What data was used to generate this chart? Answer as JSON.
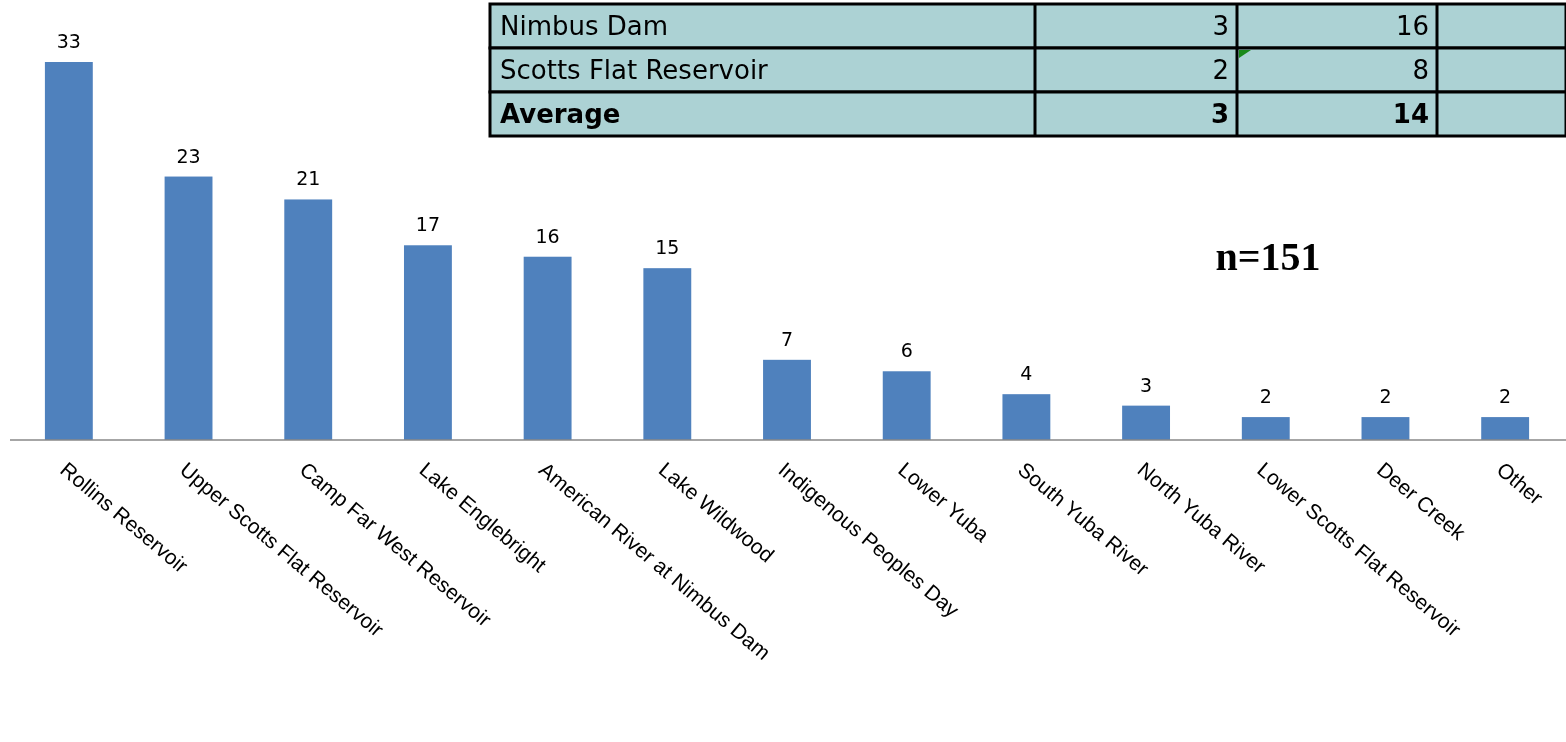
{
  "chart_data": {
    "type": "bar",
    "categories": [
      "Rollins Reservoir",
      "Upper Scotts Flat Reservoir",
      "Camp Far West Reservoir",
      "Lake Englebright",
      "American River at Nimbus Dam",
      "Lake Wildwood",
      "Indigenous Peoples Day",
      "Lower Yuba",
      "South Yuba River",
      "North Yuba River",
      "Lower Scotts Flat Reservoir",
      "Deer Creek",
      "Other"
    ],
    "values": [
      33,
      23,
      21,
      17,
      16,
      15,
      7,
      6,
      4,
      3,
      2,
      2,
      2
    ],
    "color": "#4f81bd",
    "data_labels": true,
    "annotations": [
      "Nimbus Dam",
      "3",
      "16",
      "Scotts Flat Reservoir",
      "2",
      "8",
      "Average",
      "3",
      "14",
      "n=151"
    ]
  }
}
